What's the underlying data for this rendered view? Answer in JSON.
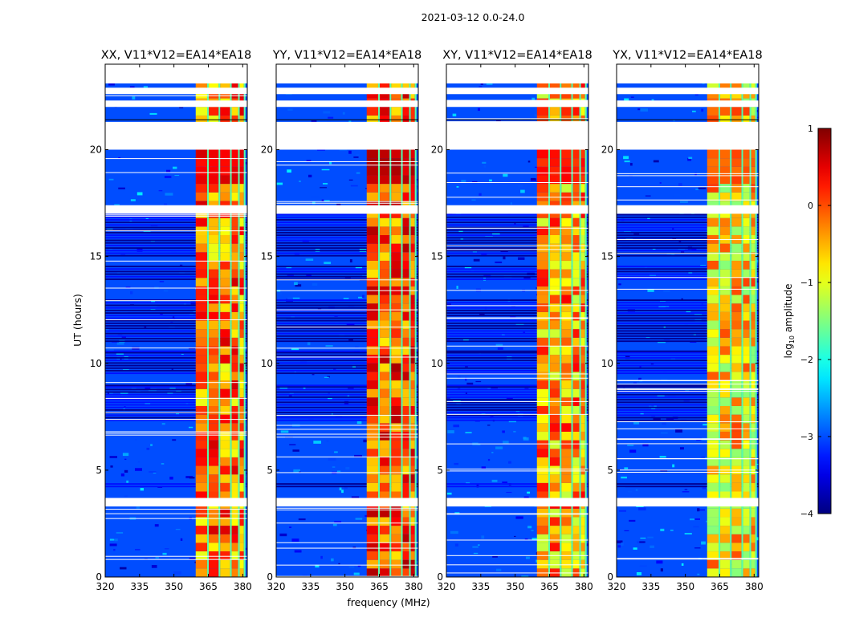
{
  "figure_title": "2021-03-12 0.0-24.0",
  "chart_data": {
    "type": "heatmap",
    "title": "2021-03-12 0.0-24.0",
    "xlabel": "frequency (MHz)",
    "ylabel": "UT (hours)",
    "xlim": [
      320,
      382
    ],
    "ylim": [
      0,
      24
    ],
    "xticks": [
      320,
      335,
      350,
      365,
      380
    ],
    "yticks": [
      0,
      5,
      10,
      15,
      20
    ],
    "colormap": "jet",
    "colorbar": {
      "label": "log10 amplitude",
      "label_base": "log",
      "label_sub": "10",
      "label_rest": " amplitude",
      "range": [
        -4,
        1
      ],
      "ticks": [
        1,
        0,
        -1,
        -2,
        -3,
        -4
      ],
      "tick_labels": [
        "1",
        "0",
        "−1",
        "−2",
        "−3",
        "−4"
      ]
    },
    "panels": [
      {
        "title": "XX, V11*V12=EA14*EA18",
        "band_log_amp": 0.2
      },
      {
        "title": "YY, V11*V12=EA14*EA18",
        "band_log_amp": 0.4
      },
      {
        "title": "XY, V11*V12=EA14*EA18",
        "band_log_amp": 0.0
      },
      {
        "title": "YX, V11*V12=EA14*EA18",
        "band_log_amp": -0.3
      }
    ],
    "background_log_amp": -3.0,
    "bright_band_MHz": [
      359.5,
      380.5
    ],
    "band_gaps_MHz": [
      364.5,
      369.5,
      374.5,
      378.0
    ],
    "blank_time_ranges_h": [
      [
        3.3,
        3.7
      ],
      [
        17.0,
        17.4
      ],
      [
        20.0,
        21.3
      ],
      [
        22.0,
        22.3
      ],
      [
        22.6,
        22.9
      ],
      [
        23.1,
        24.0
      ]
    ],
    "flagged_time_ranges_h": [
      [
        4.2,
        4.4
      ],
      [
        7.3,
        9.0
      ],
      [
        9.5,
        10.6
      ],
      [
        11.0,
        13.0
      ],
      [
        13.9,
        14.6
      ],
      [
        15.0,
        17.0
      ]
    ]
  }
}
